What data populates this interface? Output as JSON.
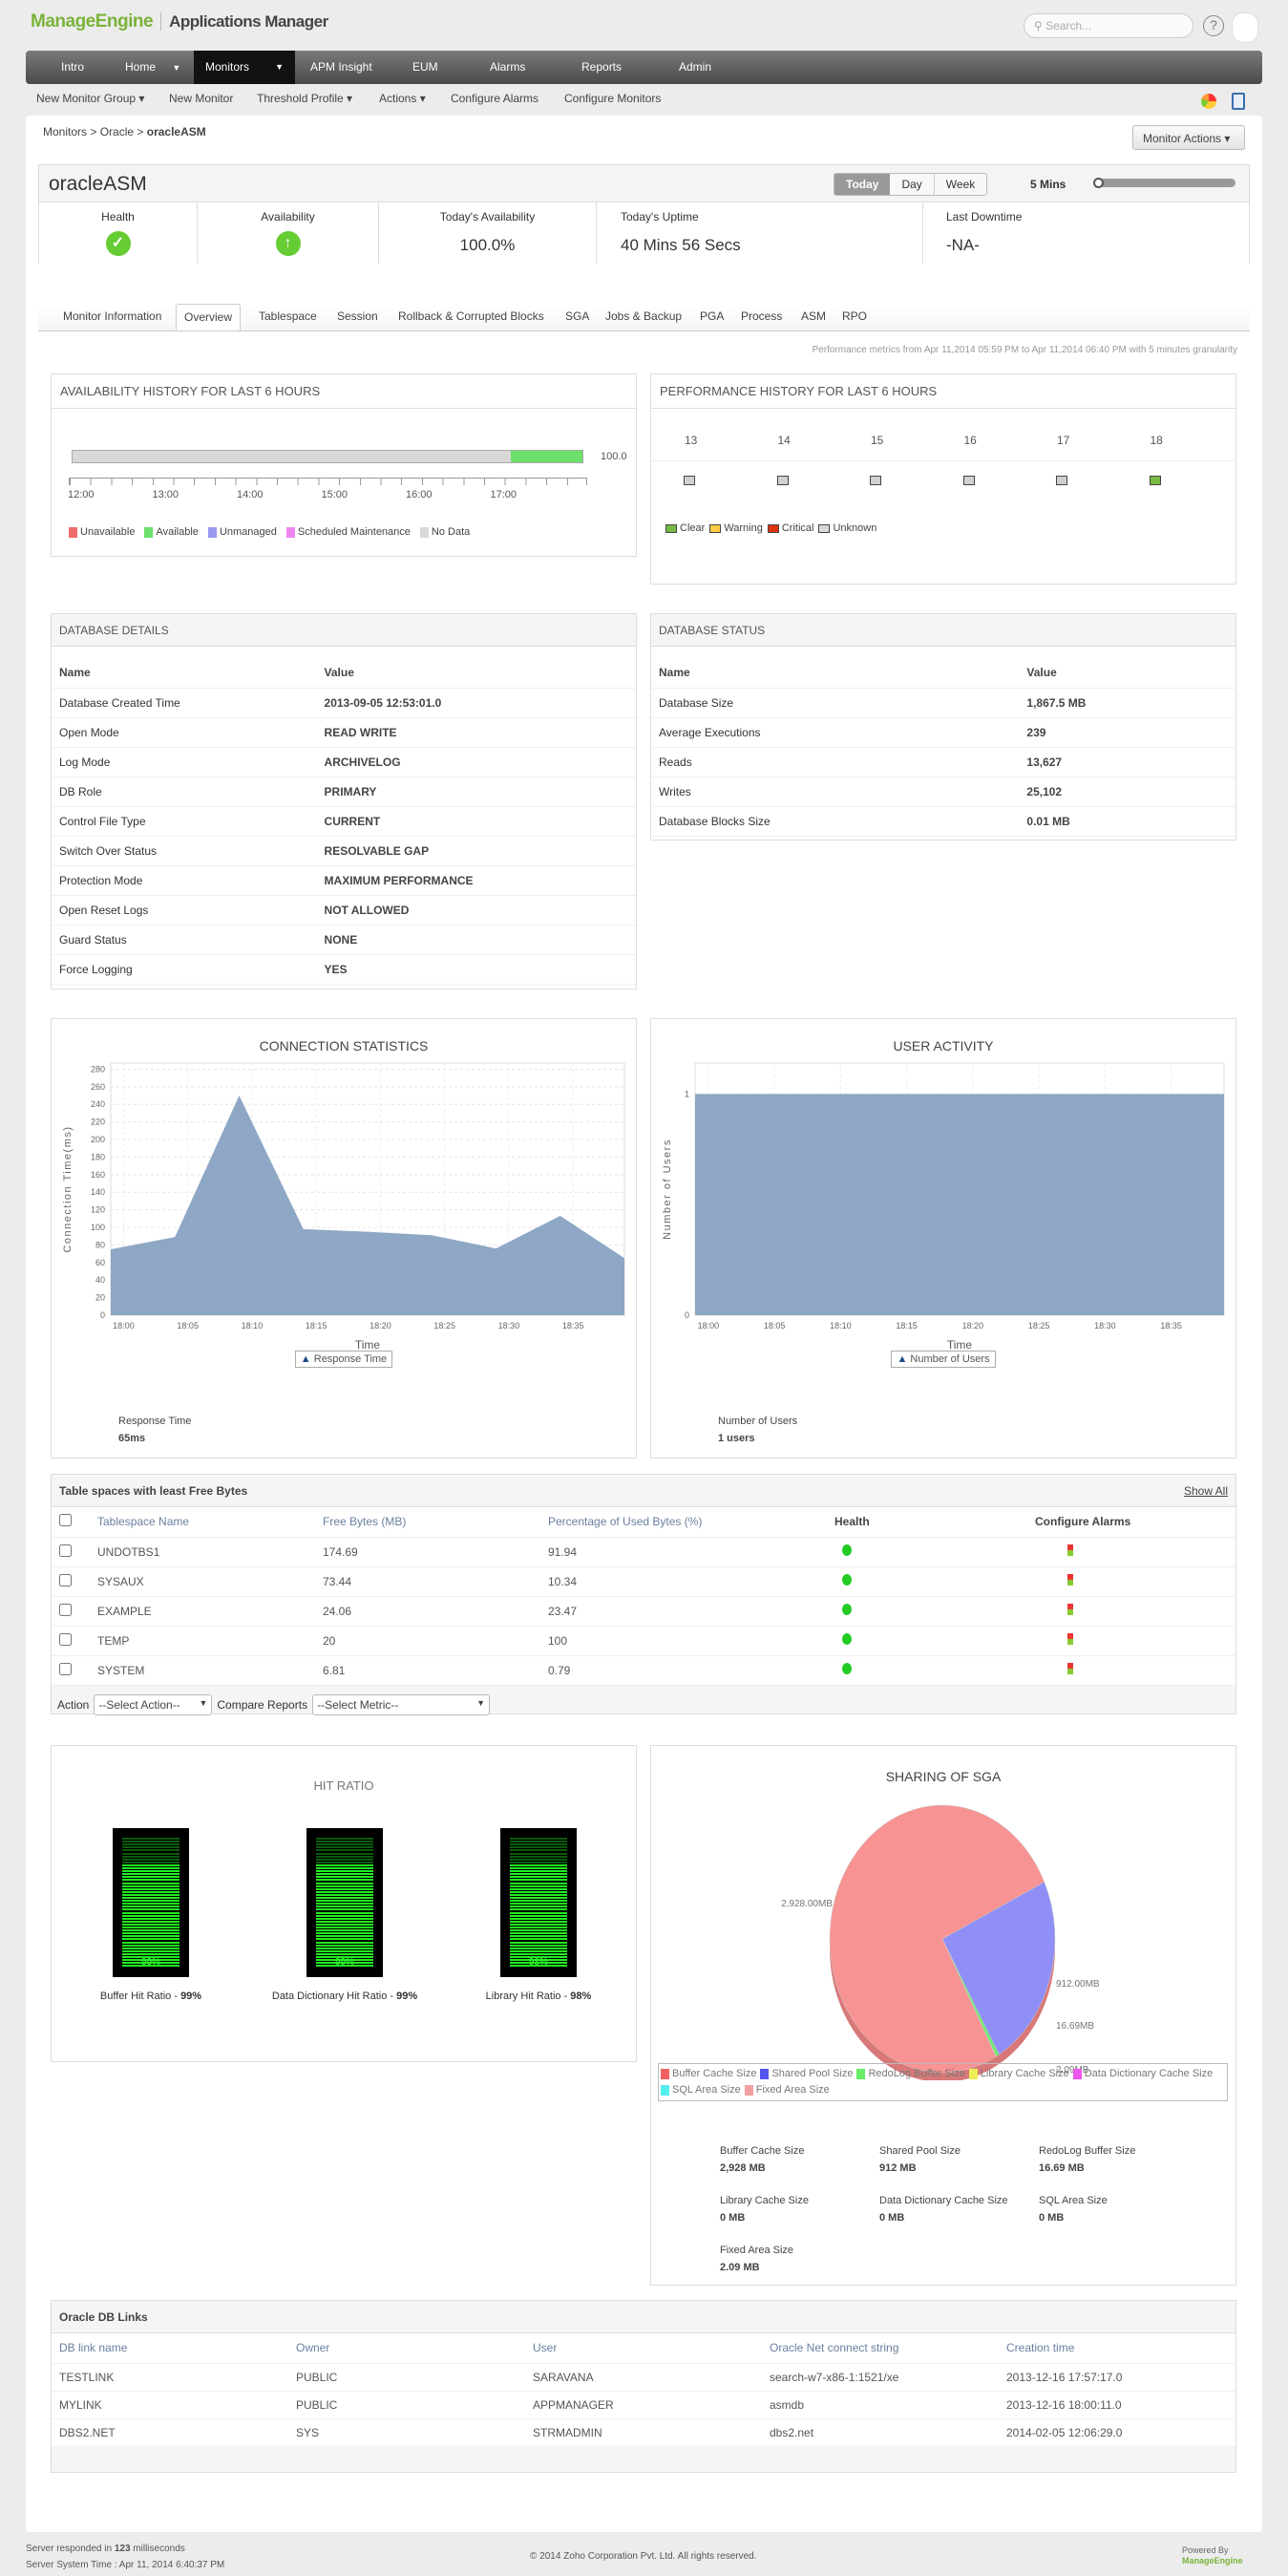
{
  "header": {
    "brand": "ManageEngine",
    "app": "Applications Manager",
    "search_placeholder": "Search..."
  },
  "nav": {
    "items": [
      "Intro",
      "Home",
      "Monitors",
      "APM Insight",
      "EUM",
      "Alarms",
      "Reports",
      "Admin"
    ],
    "active": "Monitors"
  },
  "submenu": [
    "New Monitor Group",
    "New Monitor",
    "Threshold Profile",
    "Actions",
    "Configure Alarms",
    "Configure Monitors"
  ],
  "breadcrumb": {
    "a": "Monitors",
    "b": "Oracle",
    "c": "oracleASM"
  },
  "monitor_actions": "Monitor Actions",
  "monitor": {
    "name": "oracleASM",
    "periods": [
      "Today",
      "Day",
      "Week"
    ],
    "active_period": "Today",
    "interval": "5 Mins",
    "health_label": "Health",
    "availability_label": "Availability",
    "today_avail_label": "Today's Availability",
    "today_avail": "100.0%",
    "uptime_label": "Today's Uptime",
    "uptime": "40 Mins 56 Secs",
    "downtime_label": "Last Downtime",
    "downtime": "-NA-"
  },
  "tabs": [
    "Monitor Information",
    "Overview",
    "Tablespace",
    "Session",
    "Rollback & Corrupted Blocks",
    "SGA",
    "Jobs & Backup",
    "PGA",
    "Process",
    "ASM",
    "RPO"
  ],
  "perf_note": "Performance metrics from Apr 11,2014 05:59 PM to Apr 11,2014 06:40 PM with 5 minutes granularity",
  "availability": {
    "title": "AVAILABILITY HISTORY FOR LAST 6 HOURS",
    "value": "100.0",
    "available_fraction": 0.14,
    "ticks": [
      "12:00",
      "13:00",
      "14:00",
      "15:00",
      "16:00",
      "17:00"
    ],
    "legend": [
      "Unavailable",
      "Available",
      "Unmanaged",
      "Scheduled Maintenance",
      "No Data"
    ],
    "legend_colors": [
      "#f06b6b",
      "#6be06b",
      "#9999ee",
      "#ee88ee",
      "#d8d8d8"
    ]
  },
  "performance": {
    "title": "PERFORMANCE HISTORY FOR LAST 6 HOURS",
    "hours": [
      "13",
      "14",
      "15",
      "16",
      "17",
      "18"
    ],
    "states": [
      "unknown",
      "unknown",
      "unknown",
      "unknown",
      "unknown",
      "clear"
    ],
    "legend": [
      "Clear",
      "Warning",
      "Critical",
      "Unknown"
    ],
    "legend_colors": [
      "#77bb44",
      "#ffcc44",
      "#dd3311",
      "#d8d8d8"
    ]
  },
  "db_details": {
    "title": "DATABASE DETAILS",
    "col_name": "Name",
    "col_value": "Value",
    "rows": [
      [
        "Database Created Time",
        "2013-09-05 12:53:01.0"
      ],
      [
        "Open Mode",
        "READ WRITE"
      ],
      [
        "Log Mode",
        "ARCHIVELOG"
      ],
      [
        "DB Role",
        "PRIMARY"
      ],
      [
        "Control File Type",
        "CURRENT"
      ],
      [
        "Switch Over Status",
        "RESOLVABLE GAP"
      ],
      [
        "Protection Mode",
        "MAXIMUM PERFORMANCE"
      ],
      [
        "Open Reset Logs",
        "NOT ALLOWED"
      ],
      [
        "Guard Status",
        "NONE"
      ],
      [
        "Force Logging",
        "YES"
      ]
    ]
  },
  "db_status": {
    "title": "DATABASE STATUS",
    "col_name": "Name",
    "col_value": "Value",
    "rows": [
      [
        "Database Size",
        "1,867.5 MB"
      ],
      [
        "Average Executions",
        "239"
      ],
      [
        "Reads",
        "13,627"
      ],
      [
        "Writes",
        "25,102"
      ],
      [
        "Database Blocks Size",
        "0.01 MB"
      ]
    ]
  },
  "chart_data": [
    {
      "type": "area",
      "title": "CONNECTION STATISTICS",
      "xlabel": "Time",
      "ylabel": "Connection Time(ms)",
      "legend": "Response Time",
      "x": [
        "17:59",
        "18:04",
        "18:09",
        "18:14",
        "18:19",
        "18:24",
        "18:29",
        "18:34",
        "18:39"
      ],
      "x_minutes": [
        0,
        5,
        10,
        15,
        20,
        25,
        30,
        35,
        40
      ],
      "values": [
        75,
        89,
        250,
        98,
        95,
        91,
        76,
        113,
        65
      ],
      "xticks": [
        "18:00",
        "18:05",
        "18:10",
        "18:15",
        "18:20",
        "18:25",
        "18:30",
        "18:35"
      ],
      "xtick_minutes": [
        1,
        6,
        11,
        16,
        21,
        26,
        31,
        36
      ],
      "yticks": [
        0,
        20,
        40,
        60,
        80,
        100,
        120,
        140,
        160,
        180,
        200,
        220,
        240,
        260,
        280
      ],
      "ylim": [
        0,
        287
      ],
      "xlim": [
        0,
        40
      ],
      "summary_label": "Response Time",
      "summary_value": "65ms"
    },
    {
      "type": "area",
      "title": "USER ACTIVITY",
      "xlabel": "Time",
      "ylabel": "Number of Users",
      "legend": "Number of Users",
      "x_minutes": [
        0,
        40
      ],
      "values": [
        1,
        1
      ],
      "xticks": [
        "18:00",
        "18:05",
        "18:10",
        "18:15",
        "18:20",
        "18:25",
        "18:30",
        "18:35"
      ],
      "xtick_minutes": [
        1,
        6,
        11,
        16,
        21,
        26,
        31,
        36
      ],
      "yticks": [
        0,
        1
      ],
      "ylim": [
        0,
        1.14
      ],
      "xlim": [
        0,
        40
      ],
      "summary_label": "Number of Users",
      "summary_value": "1 users"
    },
    {
      "type": "pie",
      "title": "SHARING OF SGA",
      "categories": [
        "Buffer Cache Size",
        "Shared Pool Size",
        "RedoLog Buffer Size",
        "Library Cache Size",
        "Data Dictionary Cache Size",
        "SQL Area Size",
        "Fixed Area Size"
      ],
      "values": [
        2928,
        912,
        16.69,
        0,
        0,
        0,
        2.09
      ],
      "colors": [
        "#f06060",
        "#5555ee",
        "#66ee66",
        "#eeee55",
        "#ee55ee",
        "#55eeee",
        "#f4a0a0"
      ],
      "labels": [
        "2,928.00MB",
        "912.00MB",
        "16.69MB",
        "2.09MB"
      ]
    }
  ],
  "tablespaces": {
    "title": "Table spaces with least Free Bytes",
    "show_all": "Show All",
    "cols": [
      "Tablespace Name",
      "Free Bytes  (MB)",
      "Percentage of Used Bytes  (%)",
      "Health",
      "Configure Alarms"
    ],
    "rows": [
      [
        "UNDOTBS1",
        "174.69",
        "91.94"
      ],
      [
        "SYSAUX",
        "73.44",
        "10.34"
      ],
      [
        "EXAMPLE",
        "24.06",
        "23.47"
      ],
      [
        "TEMP",
        "20",
        "100"
      ],
      [
        "SYSTEM",
        "6.81",
        "0.79"
      ]
    ],
    "action_label": "Action",
    "action_value": "--Select Action--",
    "compare_label": "Compare Reports",
    "compare_value": "--Select Metric--"
  },
  "hit_ratio": {
    "title": "HIT RATIO",
    "items": [
      {
        "label": "Buffer Hit Ratio - ",
        "value": "99%",
        "pct": 99
      },
      {
        "label": "Data Dictionary Hit Ratio - ",
        "value": "99%",
        "pct": 99
      },
      {
        "label": "Library Hit Ratio - ",
        "value": "98%",
        "pct": 98
      }
    ]
  },
  "sga_values": [
    [
      "Buffer Cache Size",
      "2,928 MB"
    ],
    [
      "Shared Pool Size",
      "912 MB"
    ],
    [
      "RedoLog Buffer Size",
      "16.69 MB"
    ],
    [
      "Library Cache Size",
      "0 MB"
    ],
    [
      "Data Dictionary Cache Size",
      "0 MB"
    ],
    [
      "SQL Area Size",
      "0 MB"
    ],
    [
      "Fixed Area Size",
      "2.09 MB"
    ]
  ],
  "db_links": {
    "title": "Oracle DB Links",
    "cols": [
      "DB link name",
      "Owner",
      "User",
      "Oracle Net connect string",
      "Creation time"
    ],
    "rows": [
      [
        "TESTLINK",
        "PUBLIC",
        "SARAVANA",
        "search-w7-x86-1:1521/xe",
        "2013-12-16 17:57:17.0"
      ],
      [
        "MYLINK",
        "PUBLIC",
        "APPMANAGER",
        "asmdb",
        "2013-12-16 18:00:11.0"
      ],
      [
        "DBS2.NET",
        "SYS",
        "STRMADMIN",
        "dbs2.net",
        "2014-02-05 12:06:29.0"
      ]
    ]
  },
  "footer": {
    "resp_pre": "Server responded in ",
    "resp_ms": "123",
    "resp_post": " milliseconds",
    "system_time": "Server System Time : Apr 11, 2014 6:40:37 PM",
    "copyright": "© 2014 Zoho Corporation Pvt. Ltd.  All rights reserved.",
    "powered": "Powered By",
    "powered_brand": "ManageEngine"
  }
}
